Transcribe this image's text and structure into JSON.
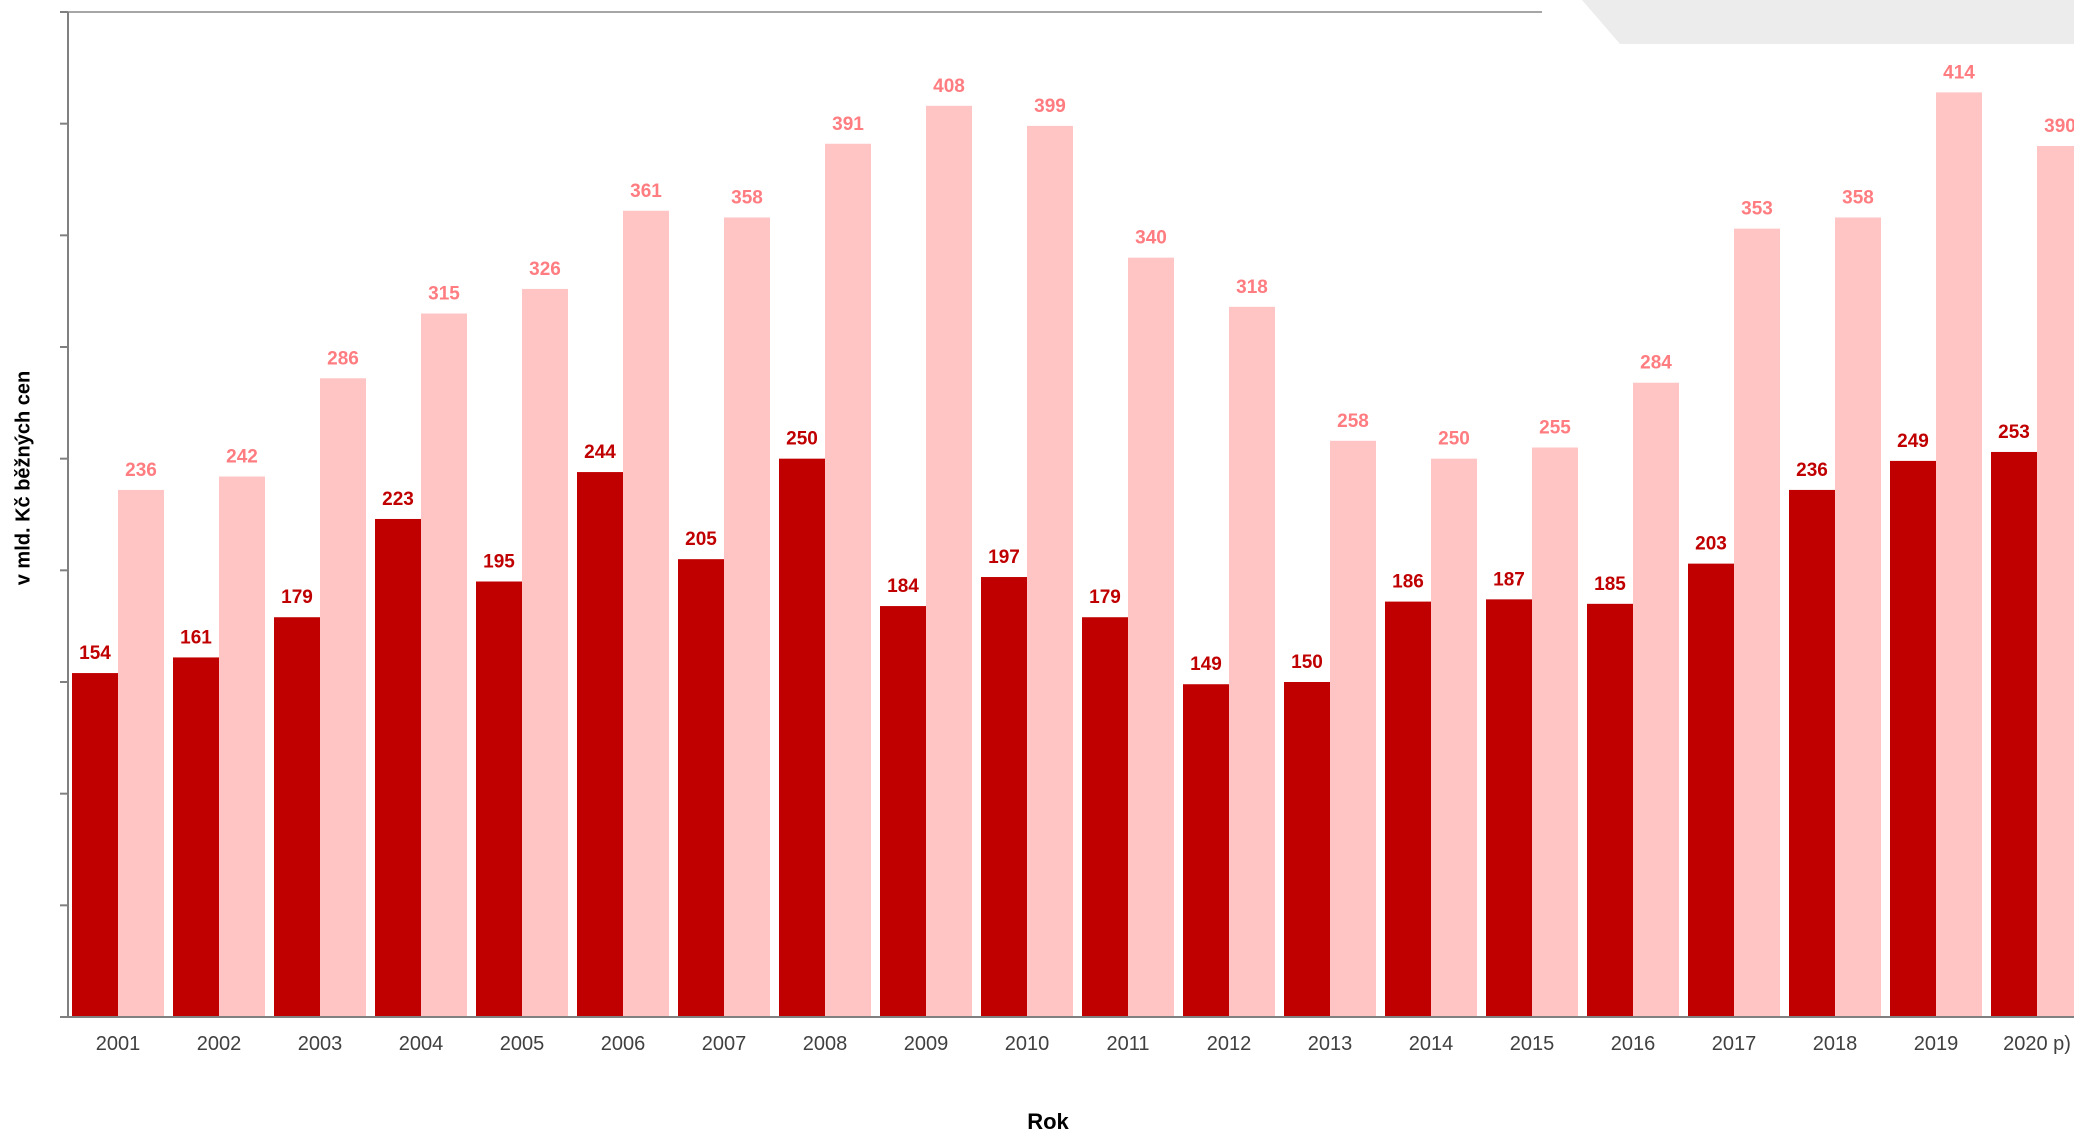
{
  "chart_data": {
    "type": "bar",
    "title": "",
    "xlabel": "Rok",
    "ylabel": "v mld. Kč běžných cen",
    "categories": [
      "2001",
      "2002",
      "2003",
      "2004",
      "2005",
      "2006",
      "2007",
      "2008",
      "2009",
      "2010",
      "2011",
      "2012",
      "2013",
      "2014",
      "2015",
      "2016",
      "2017",
      "2018",
      "2019",
      "2020 p)"
    ],
    "series": [
      {
        "values": [
          154,
          161,
          179,
          223,
          195,
          244,
          205,
          250,
          184,
          197,
          179,
          149,
          150,
          186,
          187,
          185,
          203,
          236,
          249,
          253
        ]
      },
      {
        "values": [
          236,
          242,
          286,
          315,
          326,
          361,
          358,
          391,
          408,
          399,
          340,
          318,
          258,
          250,
          255,
          284,
          353,
          358,
          414,
          390
        ]
      }
    ],
    "ylim": [
      0,
      450
    ],
    "ytick_step": 50,
    "grid": false,
    "data_labels": true,
    "colors": {
      "series1": "#c00000",
      "series2": "#ffc4c4",
      "label1": "#c00000",
      "label2": "#ff7c80",
      "axis": "#808080"
    }
  }
}
